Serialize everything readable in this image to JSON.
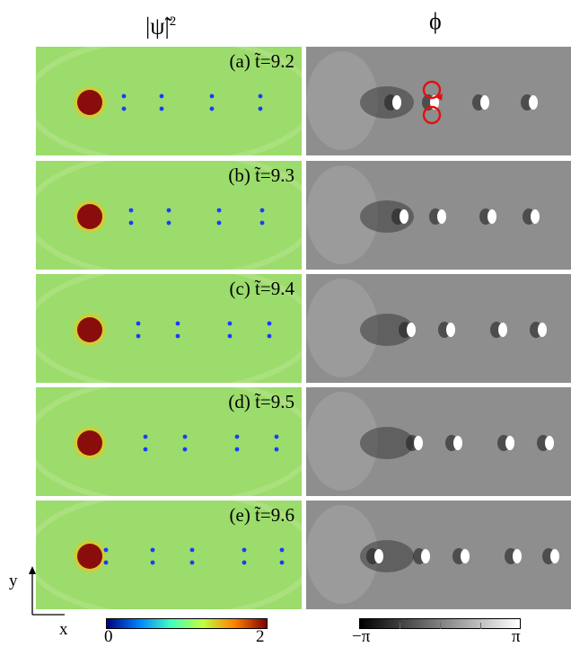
{
  "figure": {
    "col_titles": {
      "left": "|ψ̃|",
      "left_sup": "2",
      "right": "ϕ"
    },
    "rows": [
      {
        "label": "(a) t̃=9.2"
      },
      {
        "label": "(b) t̃=9.3"
      },
      {
        "label": "(c) t̃=9.4"
      },
      {
        "label": "(d) t̃=9.5"
      },
      {
        "label": "(e) t̃=9.6"
      }
    ],
    "axes": {
      "y": "y",
      "x": "x"
    },
    "colorbars": {
      "density": {
        "min": "0",
        "max": "2",
        "colors": [
          "#00007f",
          "#0080ff",
          "#40ffc0",
          "#c0ff40",
          "#ff8000",
          "#7f0000"
        ]
      },
      "phase": {
        "min": "−π",
        "max": "π",
        "colors": [
          "#000000",
          "#ffffff"
        ]
      }
    },
    "colors": {
      "density_background": "#9bdc6c",
      "obstacle": "#8a0d0d",
      "vortex_core": "#1a3cff",
      "phase_background": "#8e8e8e",
      "annotation": "#e21010"
    }
  }
}
